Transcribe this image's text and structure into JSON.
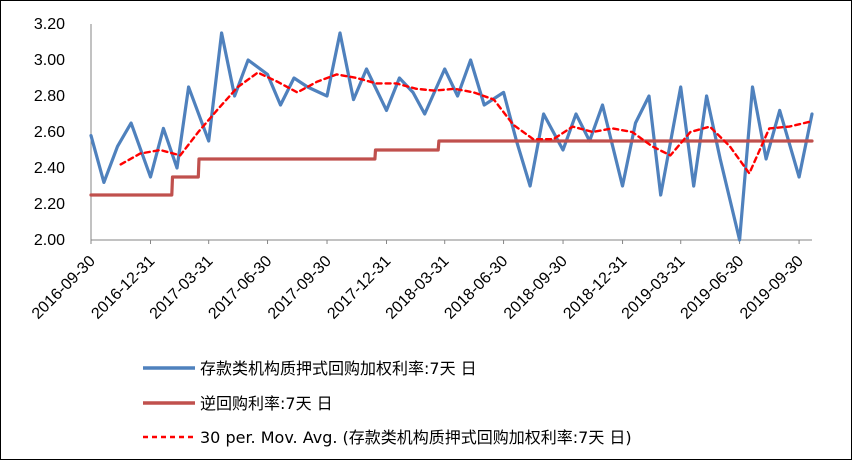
{
  "chart_data": {
    "type": "line",
    "ylim": [
      2.0,
      3.2
    ],
    "y_ticks": [
      "2.00",
      "2.20",
      "2.40",
      "2.60",
      "2.80",
      "3.00",
      "3.20"
    ],
    "x_tick_labels": [
      "2016-09-30",
      "2016-12-31",
      "2017-03-31",
      "2017-06-30",
      "2017-09-30",
      "2017-12-31",
      "2018-03-31",
      "2018-06-30",
      "2018-09-30",
      "2018-12-31",
      "2019-03-31",
      "2019-06-30",
      "2019-09-30"
    ],
    "grid": false,
    "legend_position": "bottom",
    "colors": {
      "series_1": "#4f81bd",
      "series_2": "#c0504d",
      "series_3": "#ff0000"
    },
    "series": [
      {
        "name": "存款类机构质押式回购加权利率:7天 日",
        "style": "solid",
        "x": [
          "2016-09-30",
          "2016-10-20",
          "2016-11-10",
          "2016-12-01",
          "2016-12-31",
          "2017-01-20",
          "2017-02-10",
          "2017-02-28",
          "2017-03-31",
          "2017-04-20",
          "2017-05-10",
          "2017-05-31",
          "2017-06-30",
          "2017-07-20",
          "2017-08-10",
          "2017-08-31",
          "2017-09-30",
          "2017-10-20",
          "2017-11-10",
          "2017-11-30",
          "2017-12-31",
          "2018-01-20",
          "2018-02-10",
          "2018-02-28",
          "2018-03-31",
          "2018-04-20",
          "2018-05-10",
          "2018-05-31",
          "2018-06-30",
          "2018-07-20",
          "2018-08-10",
          "2018-08-31",
          "2018-09-30",
          "2018-10-20",
          "2018-11-10",
          "2018-11-30",
          "2018-12-31",
          "2019-01-20",
          "2019-02-10",
          "2019-02-28",
          "2019-03-31",
          "2019-04-20",
          "2019-05-10",
          "2019-05-31",
          "2019-06-30",
          "2019-07-20",
          "2019-08-10",
          "2019-08-31",
          "2019-09-30",
          "2019-10-20"
        ],
        "values": [
          2.58,
          2.32,
          2.52,
          2.65,
          2.35,
          2.62,
          2.4,
          2.85,
          2.55,
          3.15,
          2.8,
          3.0,
          2.92,
          2.75,
          2.9,
          2.85,
          2.8,
          3.15,
          2.78,
          2.95,
          2.72,
          2.9,
          2.82,
          2.7,
          2.95,
          2.8,
          3.0,
          2.75,
          2.82,
          2.55,
          2.3,
          2.7,
          2.5,
          2.7,
          2.55,
          2.75,
          2.3,
          2.65,
          2.8,
          2.25,
          2.85,
          2.3,
          2.8,
          2.45,
          2.0,
          2.85,
          2.45,
          2.72,
          2.35,
          2.7
        ]
      },
      {
        "name": "逆回购利率:7天 日",
        "style": "solid",
        "x": [
          "2016-09-30",
          "2017-02-02",
          "2017-02-03",
          "2017-03-15",
          "2017-03-16",
          "2017-12-13",
          "2017-12-14",
          "2018-03-21",
          "2018-03-22",
          "2019-10-20"
        ],
        "values": [
          2.25,
          2.25,
          2.35,
          2.35,
          2.45,
          2.45,
          2.5,
          2.5,
          2.55,
          2.55
        ]
      },
      {
        "name": "30 per. Mov. Avg. (存款类机构质押式回购加权利率:7天 日)",
        "style": "dashed",
        "x": [
          "2016-11-15",
          "2016-12-15",
          "2017-01-15",
          "2017-02-15",
          "2017-03-15",
          "2017-04-15",
          "2017-05-15",
          "2017-06-15",
          "2017-07-15",
          "2017-08-15",
          "2017-09-15",
          "2017-10-15",
          "2017-11-15",
          "2017-12-15",
          "2018-01-15",
          "2018-02-15",
          "2018-03-15",
          "2018-04-15",
          "2018-05-15",
          "2018-06-15",
          "2018-07-15",
          "2018-08-15",
          "2018-09-15",
          "2018-10-15",
          "2018-11-15",
          "2018-12-15",
          "2019-01-15",
          "2019-02-15",
          "2019-03-15",
          "2019-04-15",
          "2019-05-15",
          "2019-06-15",
          "2019-07-15",
          "2019-08-15",
          "2019-09-15",
          "2019-10-20"
        ],
        "values": [
          2.42,
          2.48,
          2.5,
          2.47,
          2.6,
          2.73,
          2.85,
          2.93,
          2.88,
          2.82,
          2.88,
          2.92,
          2.9,
          2.87,
          2.87,
          2.84,
          2.83,
          2.84,
          2.82,
          2.78,
          2.64,
          2.56,
          2.56,
          2.63,
          2.6,
          2.62,
          2.6,
          2.52,
          2.47,
          2.6,
          2.63,
          2.52,
          2.37,
          2.62,
          2.63,
          2.66
        ]
      }
    ]
  }
}
